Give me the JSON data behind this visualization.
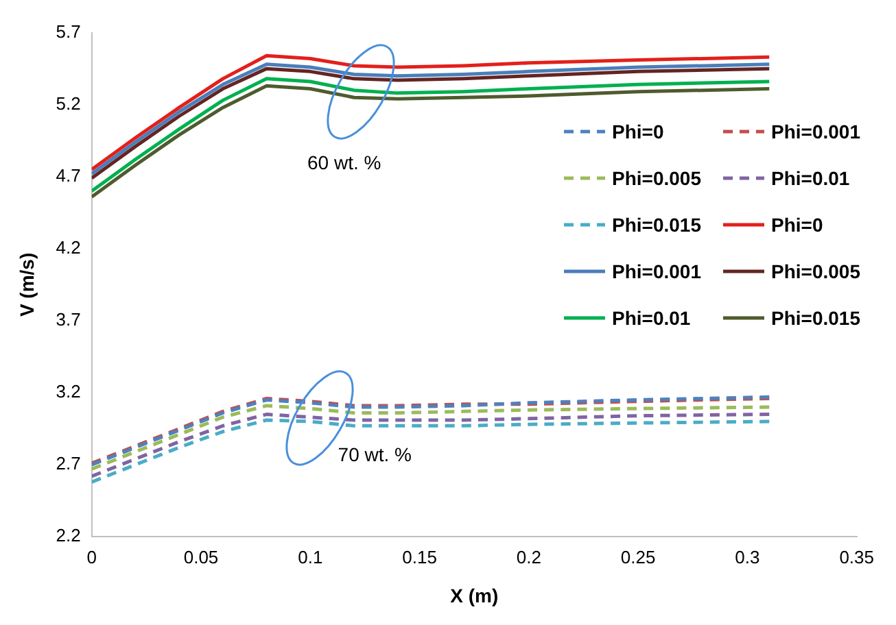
{
  "chart_data": {
    "type": "line",
    "xlabel": "X (m)",
    "ylabel": "V (m/s)",
    "x": [
      0,
      0.02,
      0.04,
      0.06,
      0.08,
      0.1,
      0.12,
      0.14,
      0.17,
      0.2,
      0.25,
      0.31
    ],
    "xlim": [
      0,
      0.35
    ],
    "xticks": [
      0,
      0.05,
      0.1,
      0.15,
      0.2,
      0.25,
      0.3,
      0.35
    ],
    "ylim": [
      2.2,
      5.7
    ],
    "yticks": [
      2.2,
      2.7,
      3.2,
      3.7,
      4.2,
      4.7,
      5.2,
      5.7
    ],
    "grid": false,
    "legend": "right",
    "marker": "none",
    "annotations": [
      "60 wt. %",
      "70 wt. %"
    ],
    "series": [
      {
        "name": "Phi=0",
        "color": "#4f81bd",
        "line_style": "dashed",
        "values": [
          2.7,
          2.82,
          2.94,
          3.06,
          3.15,
          3.13,
          3.1,
          3.1,
          3.11,
          3.13,
          3.15,
          3.17
        ]
      },
      {
        "name": "Phi=0.001",
        "color": "#c0504d",
        "line_style": "dashed",
        "values": [
          2.71,
          2.83,
          2.95,
          3.07,
          3.16,
          3.14,
          3.11,
          3.11,
          3.12,
          3.12,
          3.14,
          3.16
        ]
      },
      {
        "name": "Phi=0.005",
        "color": "#9bbb59",
        "line_style": "dashed",
        "values": [
          2.67,
          2.79,
          2.91,
          3.03,
          3.11,
          3.09,
          3.06,
          3.06,
          3.07,
          3.08,
          3.09,
          3.1
        ]
      },
      {
        "name": "Phi=0.01",
        "color": "#8064a2",
        "line_style": "dashed",
        "values": [
          2.62,
          2.74,
          2.86,
          2.97,
          3.05,
          3.03,
          3.01,
          3.01,
          3.01,
          3.02,
          3.04,
          3.05
        ]
      },
      {
        "name": "Phi=0.015",
        "color": "#4bacc6",
        "line_style": "dashed",
        "values": [
          2.58,
          2.7,
          2.82,
          2.93,
          3.01,
          3.0,
          2.97,
          2.97,
          2.97,
          2.98,
          2.99,
          3.0
        ]
      },
      {
        "name": "Phi=0",
        "color": "#e3201b",
        "line_style": "solid",
        "values": [
          4.75,
          4.97,
          5.18,
          5.38,
          5.54,
          5.52,
          5.47,
          5.46,
          5.47,
          5.49,
          5.51,
          5.53
        ]
      },
      {
        "name": "Phi=0.001",
        "color": "#4a7ebb",
        "line_style": "solid",
        "values": [
          4.72,
          4.94,
          5.15,
          5.34,
          5.48,
          5.46,
          5.41,
          5.4,
          5.41,
          5.43,
          5.46,
          5.48
        ]
      },
      {
        "name": "Phi=0.005",
        "color": "#632523",
        "line_style": "solid",
        "values": [
          4.69,
          4.91,
          5.12,
          5.31,
          5.45,
          5.43,
          5.38,
          5.37,
          5.38,
          5.4,
          5.43,
          5.45
        ]
      },
      {
        "name": "Phi=0.01",
        "color": "#00b050",
        "line_style": "solid",
        "values": [
          4.6,
          4.82,
          5.03,
          5.23,
          5.38,
          5.36,
          5.3,
          5.28,
          5.29,
          5.31,
          5.34,
          5.36
        ]
      },
      {
        "name": "Phi=0.015",
        "color": "#4f5b2e",
        "line_style": "solid",
        "values": [
          4.56,
          4.78,
          4.99,
          5.18,
          5.33,
          5.31,
          5.25,
          5.24,
          5.25,
          5.26,
          5.29,
          5.31
        ]
      }
    ]
  }
}
